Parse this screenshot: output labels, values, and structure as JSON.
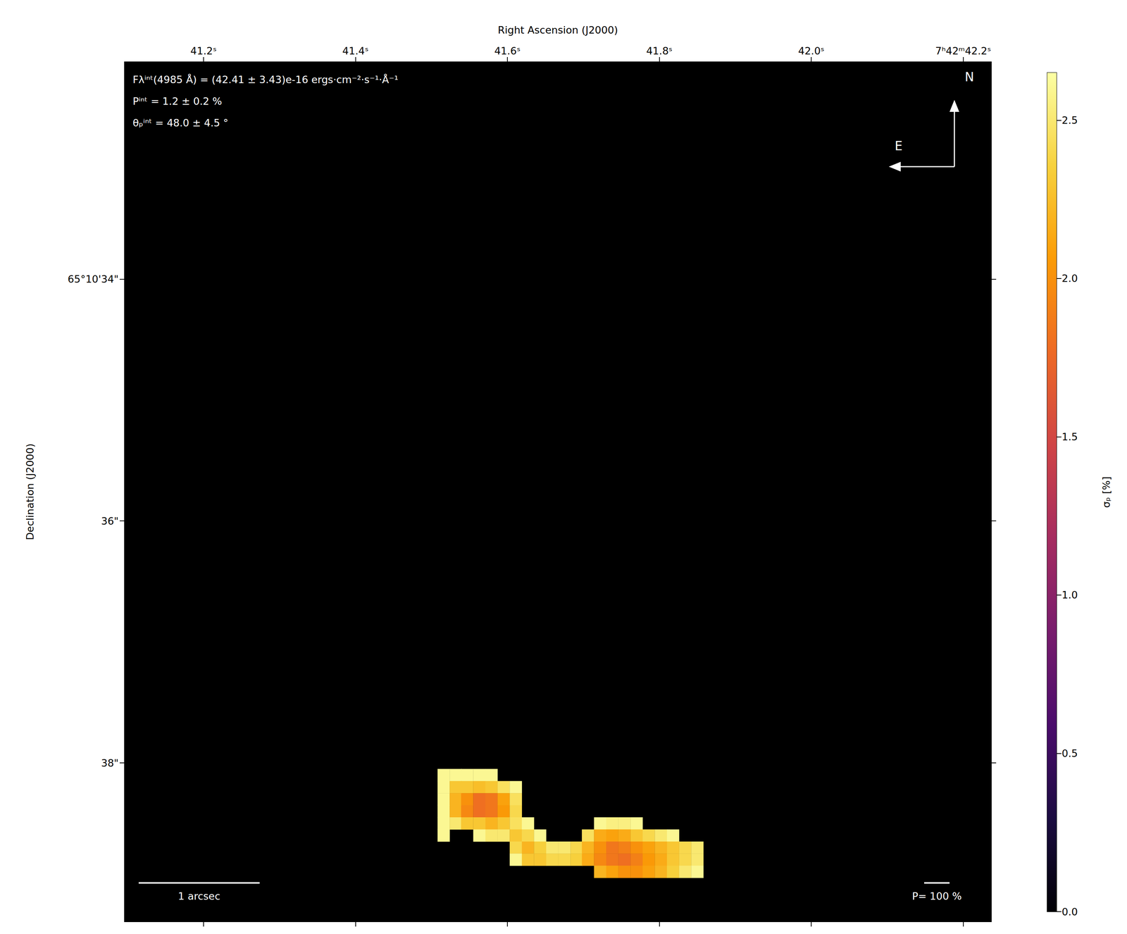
{
  "chart_data": {
    "type": "heatmap",
    "x_label": "Right Ascension (J2000)",
    "y_label": "Declination (J2000)",
    "xlim": [
      41.096,
      42.237
    ],
    "xticks": [
      {
        "value": 41.2,
        "label": "41.2ˢ"
      },
      {
        "value": 41.4,
        "label": "41.4ˢ"
      },
      {
        "value": 41.6,
        "label": "41.6ˢ"
      },
      {
        "value": 41.8,
        "label": "41.8ˢ"
      },
      {
        "value": 42.0,
        "label": "42.0ˢ"
      },
      {
        "value": 42.2,
        "label": "7ʰ42ᵐ42.2ˢ"
      }
    ],
    "ylim": [
      39.313,
      32.205
    ],
    "yticks": [
      {
        "value": 34,
        "label": "65°10'34\""
      },
      {
        "value": 36,
        "label": "36\""
      },
      {
        "value": 38,
        "label": "38\""
      }
    ],
    "cell_size": [
      0.0159,
      0.1
    ],
    "cells": [
      [
        41.516,
        38.1,
        2.6
      ],
      [
        41.532,
        38.1,
        2.6
      ],
      [
        41.547,
        38.1,
        2.6
      ],
      [
        41.563,
        38.1,
        2.6
      ],
      [
        41.579,
        38.1,
        2.6
      ],
      [
        41.516,
        38.2,
        2.6
      ],
      [
        41.532,
        38.2,
        2.3
      ],
      [
        41.547,
        38.2,
        2.3
      ],
      [
        41.563,
        38.2,
        2.25
      ],
      [
        41.579,
        38.2,
        2.3
      ],
      [
        41.595,
        38.2,
        2.45
      ],
      [
        41.611,
        38.2,
        2.6
      ],
      [
        41.516,
        38.3,
        2.6
      ],
      [
        41.532,
        38.3,
        2.2
      ],
      [
        41.547,
        38.3,
        2.0
      ],
      [
        41.563,
        38.3,
        1.8
      ],
      [
        41.579,
        38.3,
        1.85
      ],
      [
        41.595,
        38.3,
        2.1
      ],
      [
        41.611,
        38.3,
        2.45
      ],
      [
        41.516,
        38.4,
        2.6
      ],
      [
        41.532,
        38.4,
        2.2
      ],
      [
        41.547,
        38.4,
        1.95
      ],
      [
        41.563,
        38.4,
        1.8
      ],
      [
        41.579,
        38.4,
        1.85
      ],
      [
        41.595,
        38.4,
        2.05
      ],
      [
        41.611,
        38.4,
        2.4
      ],
      [
        41.516,
        38.5,
        2.6
      ],
      [
        41.532,
        38.5,
        2.5
      ],
      [
        41.547,
        38.5,
        2.3
      ],
      [
        41.563,
        38.5,
        2.3
      ],
      [
        41.579,
        38.5,
        2.2
      ],
      [
        41.595,
        38.5,
        2.3
      ],
      [
        41.611,
        38.5,
        2.45
      ],
      [
        41.627,
        38.5,
        2.6
      ],
      [
        41.722,
        38.5,
        2.6
      ],
      [
        41.738,
        38.5,
        2.55
      ],
      [
        41.754,
        38.5,
        2.55
      ],
      [
        41.77,
        38.5,
        2.6
      ],
      [
        41.516,
        38.6,
        2.6
      ],
      [
        41.563,
        38.6,
        2.6
      ],
      [
        41.579,
        38.6,
        2.5
      ],
      [
        41.595,
        38.6,
        2.5
      ],
      [
        41.611,
        38.6,
        2.3
      ],
      [
        41.627,
        38.6,
        2.4
      ],
      [
        41.643,
        38.6,
        2.6
      ],
      [
        41.706,
        38.6,
        2.45
      ],
      [
        41.722,
        38.6,
        2.15
      ],
      [
        41.738,
        38.6,
        2.1
      ],
      [
        41.754,
        38.6,
        2.15
      ],
      [
        41.77,
        38.6,
        2.3
      ],
      [
        41.786,
        38.6,
        2.4
      ],
      [
        41.802,
        38.6,
        2.5
      ],
      [
        41.818,
        38.6,
        2.6
      ],
      [
        41.611,
        38.7,
        2.4
      ],
      [
        41.627,
        38.7,
        2.2
      ],
      [
        41.643,
        38.7,
        2.35
      ],
      [
        41.659,
        38.7,
        2.5
      ],
      [
        41.675,
        38.7,
        2.5
      ],
      [
        41.691,
        38.7,
        2.4
      ],
      [
        41.706,
        38.7,
        2.2
      ],
      [
        41.722,
        38.7,
        2.0
      ],
      [
        41.738,
        38.7,
        1.85
      ],
      [
        41.754,
        38.7,
        1.9
      ],
      [
        41.77,
        38.7,
        2.0
      ],
      [
        41.786,
        38.7,
        2.1
      ],
      [
        41.802,
        38.7,
        2.2
      ],
      [
        41.818,
        38.7,
        2.3
      ],
      [
        41.834,
        38.7,
        2.4
      ],
      [
        41.85,
        38.7,
        2.5
      ],
      [
        41.611,
        38.8,
        2.6
      ],
      [
        41.627,
        38.8,
        2.3
      ],
      [
        41.643,
        38.8,
        2.3
      ],
      [
        41.659,
        38.8,
        2.4
      ],
      [
        41.675,
        38.8,
        2.4
      ],
      [
        41.691,
        38.8,
        2.35
      ],
      [
        41.706,
        38.8,
        2.15
      ],
      [
        41.722,
        38.8,
        1.95
      ],
      [
        41.738,
        38.8,
        1.85
      ],
      [
        41.754,
        38.8,
        1.8
      ],
      [
        41.77,
        38.8,
        1.9
      ],
      [
        41.786,
        38.8,
        2.05
      ],
      [
        41.802,
        38.8,
        2.15
      ],
      [
        41.818,
        38.8,
        2.3
      ],
      [
        41.834,
        38.8,
        2.4
      ],
      [
        41.85,
        38.8,
        2.5
      ],
      [
        41.722,
        38.9,
        2.2
      ],
      [
        41.738,
        38.9,
        2.1
      ],
      [
        41.754,
        38.9,
        2.0
      ],
      [
        41.77,
        38.9,
        2.0
      ],
      [
        41.786,
        38.9,
        2.1
      ],
      [
        41.802,
        38.9,
        2.2
      ],
      [
        41.818,
        38.9,
        2.35
      ],
      [
        41.834,
        38.9,
        2.5
      ],
      [
        41.85,
        38.9,
        2.6
      ]
    ],
    "colorbar": {
      "label": "σₚ [%]",
      "range": [
        0,
        2.65
      ],
      "ticks": [
        {
          "value": 0,
          "label": "0.0"
        },
        {
          "value": 0.5,
          "label": "0.5"
        },
        {
          "value": 1,
          "label": "1.0"
        },
        {
          "value": 1.5,
          "label": "1.5"
        },
        {
          "value": 2,
          "label": "2.0"
        },
        {
          "value": 2.5,
          "label": "2.5"
        }
      ]
    },
    "annotations": [
      "Fλⁱⁿᵗ(4985 Å) = (42.41 ± 3.43)e-16 ergs·cm⁻²·s⁻¹·Å⁻¹",
      "Pⁱⁿᵗ = 1.2 ± 0.2 %",
      "θₚⁱⁿᵗ = 48.0 ± 4.5 °"
    ],
    "compass": {
      "north": "N",
      "east": "E"
    },
    "scale_bar": {
      "label": "1 arcsec",
      "length": 1
    },
    "vector_scale": {
      "label": "P= 100 %"
    }
  }
}
